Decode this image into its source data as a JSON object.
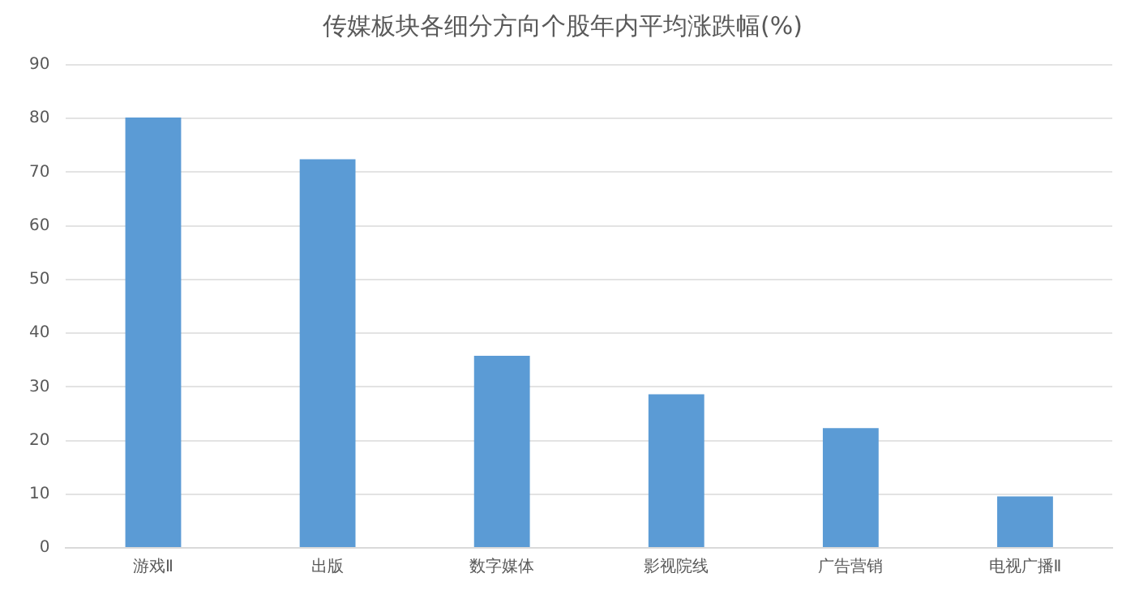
{
  "chart_data": {
    "type": "bar",
    "title": "传媒板块各细分方向个股年内平均涨跌幅(%)",
    "categories": [
      "游戏Ⅱ",
      "出版",
      "数字媒体",
      "影视院线",
      "广告营销",
      "电视广播Ⅱ"
    ],
    "values": [
      80.2,
      72.4,
      35.8,
      28.6,
      22.3,
      9.6
    ],
    "color": "#5b9bd5",
    "ylim": [
      0,
      90
    ],
    "yticks": [
      0,
      10,
      20,
      30,
      40,
      50,
      60,
      70,
      80,
      90
    ],
    "grid": "y",
    "legend": false
  }
}
